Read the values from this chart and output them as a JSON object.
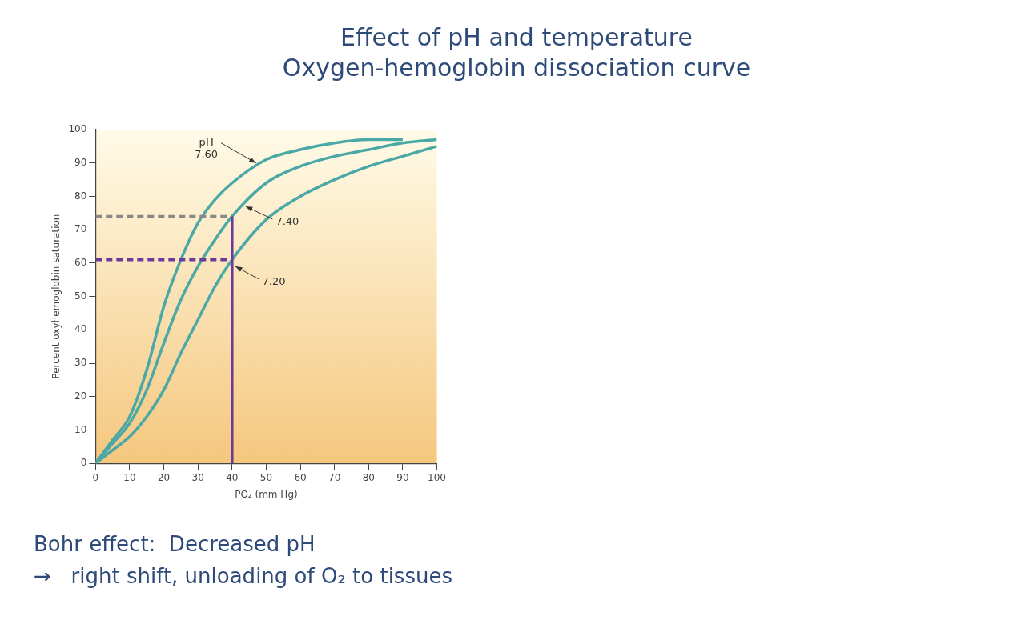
{
  "chart_data": {
    "type": "line",
    "title": "Effect of pH and temperature",
    "subtitle": "Oxygen-hemoglobin dissociation curve",
    "xlabel": "PO₂ (mm Hg)",
    "ylabel": "Percent oxyhemoglobin saturation",
    "xlim": [
      0,
      100
    ],
    "ylim": [
      0,
      100
    ],
    "xticks": [
      0,
      10,
      20,
      30,
      40,
      50,
      60,
      70,
      80,
      90,
      100
    ],
    "yticks": [
      0,
      10,
      20,
      30,
      40,
      50,
      60,
      70,
      80,
      90,
      100
    ],
    "grid": false,
    "legend": false,
    "marker": "none",
    "series": [
      {
        "color": "#4aa9a6",
        "x": [
          0,
          5,
          10,
          15,
          20,
          25,
          30,
          35,
          40,
          50,
          60,
          70,
          80,
          90
        ],
        "values": [
          0,
          7,
          14,
          28,
          47,
          61,
          72,
          79,
          84,
          91,
          94,
          96,
          97,
          97
        ]
      },
      {
        "color": "#4aa9a6",
        "x": [
          0,
          5,
          10,
          15,
          20,
          25,
          30,
          35,
          40,
          50,
          60,
          70,
          80,
          90,
          100
        ],
        "values": [
          0,
          6,
          12,
          22,
          36,
          49,
          59,
          67,
          74,
          84,
          89,
          92,
          94,
          96,
          97
        ]
      },
      {
        "color": "#4aa9a6",
        "x": [
          0,
          5,
          10,
          15,
          20,
          25,
          30,
          35,
          40,
          50,
          60,
          70,
          80,
          90,
          100
        ],
        "values": [
          0,
          4,
          8,
          14,
          22,
          33,
          43,
          53,
          61,
          73,
          80,
          85,
          89,
          92,
          95
        ]
      },
      {
        "color": "#888888",
        "line_style": "dashed",
        "x": [
          0,
          40
        ],
        "values": [
          74,
          74
        ]
      },
      {
        "color": "#6b3a9a",
        "line_style": "dashed",
        "x": [
          0,
          40
        ],
        "values": [
          61,
          61
        ]
      },
      {
        "color": "#6b3a9a",
        "line_style": "solid",
        "x": [
          40,
          40
        ],
        "values": [
          0,
          74
        ]
      }
    ],
    "annotations": [
      {
        "text": "pH\n7.60",
        "x": 47,
        "y": 90
      },
      {
        "text": "7.40",
        "x": 44,
        "y": 77
      },
      {
        "text": "7.20",
        "x": 41,
        "y": 59
      },
      "Bohr effect:  Decreased pH",
      "→   right shift, unloading of O₂ to tissues"
    ]
  }
}
